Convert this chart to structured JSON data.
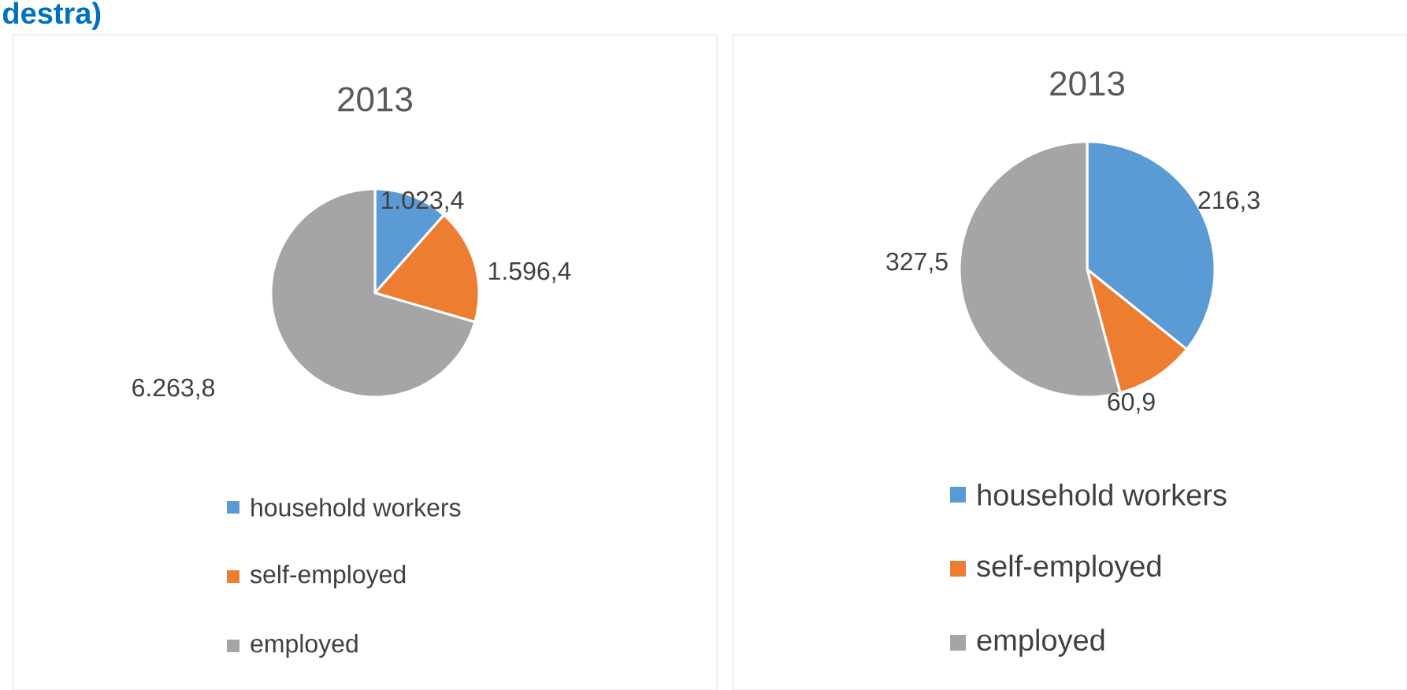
{
  "chart_data": [
    {
      "type": "pie",
      "title": "2013",
      "categories": [
        "household workers",
        "self-employed",
        "employed"
      ],
      "values": [
        1023.4,
        1596.4,
        6263.8
      ],
      "value_labels": [
        "1.023,4",
        "1.596,4",
        "6.263,8"
      ],
      "colors": [
        "#5b9bd5",
        "#ed7d31",
        "#a5a5a5"
      ],
      "legend": "bottom",
      "annotations": [
        "destra)"
      ]
    },
    {
      "type": "pie",
      "title": "2013",
      "categories": [
        "household workers",
        "self-employed",
        "employed"
      ],
      "values": [
        216.3,
        60.9,
        327.5
      ],
      "value_labels": [
        "216,3",
        "60,9",
        "327,5"
      ],
      "colors": [
        "#5b9bd5",
        "#ed7d31",
        "#a5a5a5"
      ],
      "legend": "bottom"
    }
  ]
}
